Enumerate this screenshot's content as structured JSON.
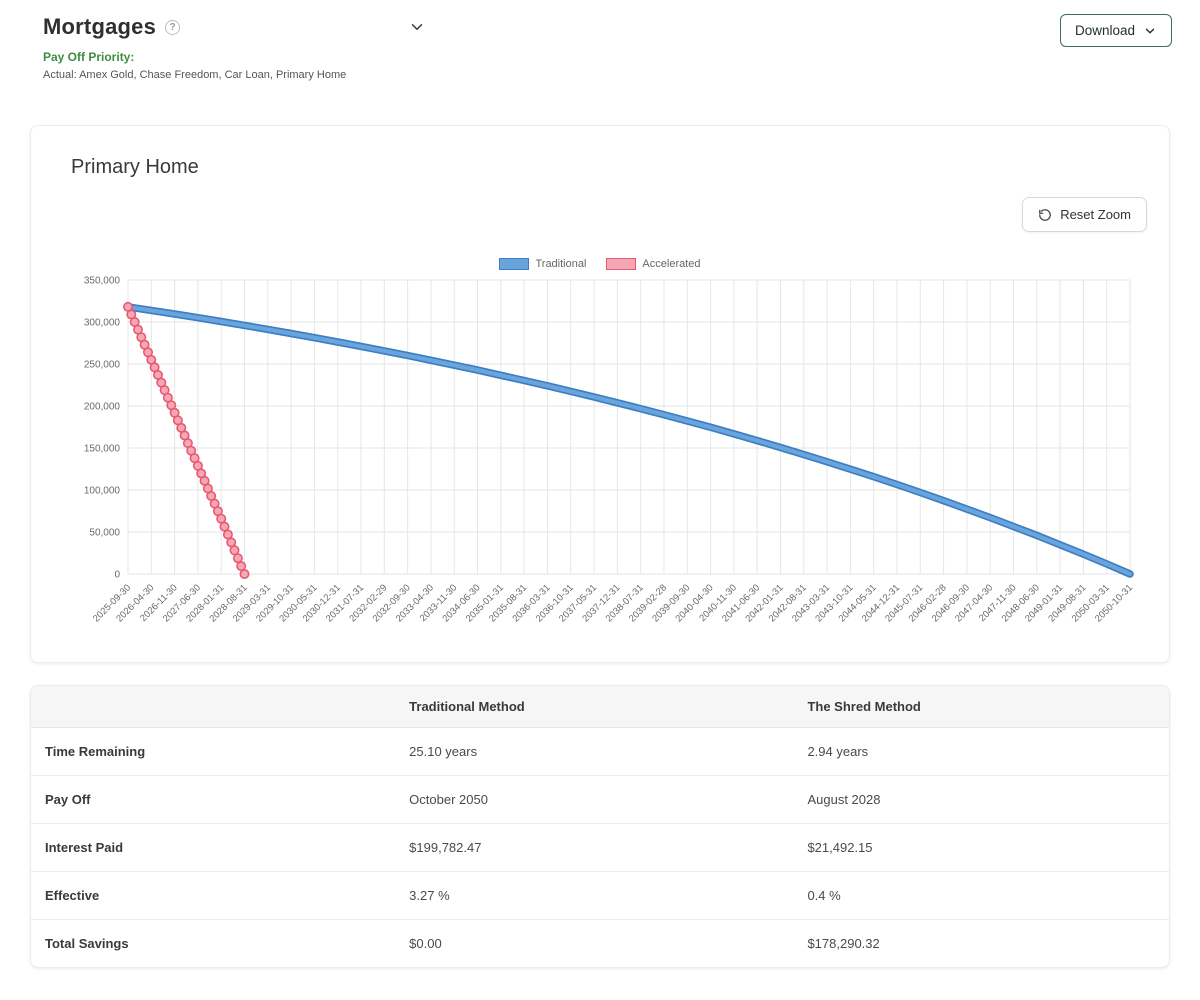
{
  "header": {
    "title": "Mortgages",
    "download_label": "Download"
  },
  "icons": {
    "help": "?"
  },
  "payoff_priority": {
    "label": "Pay Off Priority:",
    "value": "Actual: Amex Gold, Chase Freedom, Car Loan, Primary Home"
  },
  "chart_card": {
    "title": "Primary Home",
    "reset_zoom_label": "Reset Zoom"
  },
  "chart_data": {
    "type": "line",
    "title": "Primary Home",
    "legend_position": "top",
    "grid": true,
    "ylim": [
      0,
      350000
    ],
    "y_ticks": [
      0,
      50000,
      100000,
      150000,
      200000,
      250000,
      300000,
      350000
    ],
    "y_tick_labels": [
      "0",
      "50,000",
      "100,000",
      "150,000",
      "200,000",
      "250,000",
      "300,000",
      "350,000"
    ],
    "months_per_label": 7,
    "total_months": 301,
    "x_labels": [
      "2025-09-30",
      "2026-04-30",
      "2026-11-30",
      "2027-06-30",
      "2028-01-31",
      "2028-08-31",
      "2029-03-31",
      "2029-10-31",
      "2030-05-31",
      "2030-12-31",
      "2031-07-31",
      "2032-02-29",
      "2032-09-30",
      "2033-04-30",
      "2033-11-30",
      "2034-06-30",
      "2035-01-31",
      "2035-08-31",
      "2036-03-31",
      "2036-10-31",
      "2037-05-31",
      "2037-12-31",
      "2038-07-31",
      "2039-02-28",
      "2039-09-30",
      "2040-04-30",
      "2040-11-30",
      "2041-06-30",
      "2042-01-31",
      "2042-08-31",
      "2043-03-31",
      "2043-10-31",
      "2044-05-31",
      "2044-12-31",
      "2045-07-31",
      "2046-02-28",
      "2046-09-30",
      "2047-04-30",
      "2047-11-30",
      "2048-06-30",
      "2049-01-31",
      "2049-08-31",
      "2050-03-31",
      "2050-10-31"
    ],
    "series": [
      {
        "name": "Traditional",
        "color": "#3c7ec2",
        "fill_color": "#6aa4dd",
        "style": "tube",
        "values": [
          318000,
          313800,
          309500,
          305100,
          300600,
          295900,
          291200,
          286300,
          281300,
          276200,
          271000,
          265600,
          260100,
          254400,
          248600,
          242700,
          236600,
          230400,
          224000,
          217400,
          210700,
          203800,
          196800,
          189600,
          182100,
          174600,
          166800,
          158800,
          150600,
          142200,
          133600,
          124800,
          115800,
          106500,
          97000,
          87300,
          77300,
          67100,
          56600,
          45900,
          34800,
          23600,
          12000,
          0
        ]
      },
      {
        "name": "Accelerated",
        "color": "#e8596f",
        "fill_color": "#f4a7b5",
        "style": "beads",
        "values": [
          318000,
          254900,
          191900,
          128800,
          65800,
          0,
          null,
          null,
          null,
          null,
          null,
          null,
          null,
          null,
          null,
          null,
          null,
          null,
          null,
          null,
          null,
          null,
          null,
          null,
          null,
          null,
          null,
          null,
          null,
          null,
          null,
          null,
          null,
          null,
          null,
          null,
          null,
          null,
          null,
          null,
          null,
          null,
          null,
          null
        ]
      }
    ]
  },
  "comparison_table": {
    "columns": [
      "",
      "Traditional Method",
      "The Shred Method"
    ],
    "rows": [
      {
        "label": "Time Remaining",
        "traditional": "25.10 years",
        "shred": "2.94 years"
      },
      {
        "label": "Pay Off",
        "traditional": "October 2050",
        "shred": "August 2028"
      },
      {
        "label": "Interest Paid",
        "traditional": "$199,782.47",
        "shred": "$21,492.15"
      },
      {
        "label": "Effective",
        "traditional": "3.27 %",
        "shred": "0.4 %"
      },
      {
        "label": "Total Savings",
        "traditional": "$0.00",
        "shred": "$178,290.32"
      }
    ]
  },
  "colors": {
    "payoff_green": "#3e8e41",
    "download_border_green": "#3c6e59",
    "traditional_line": "#3c7ec2",
    "accelerated_line": "#e8596f",
    "gridline": "#e6e6e6"
  }
}
